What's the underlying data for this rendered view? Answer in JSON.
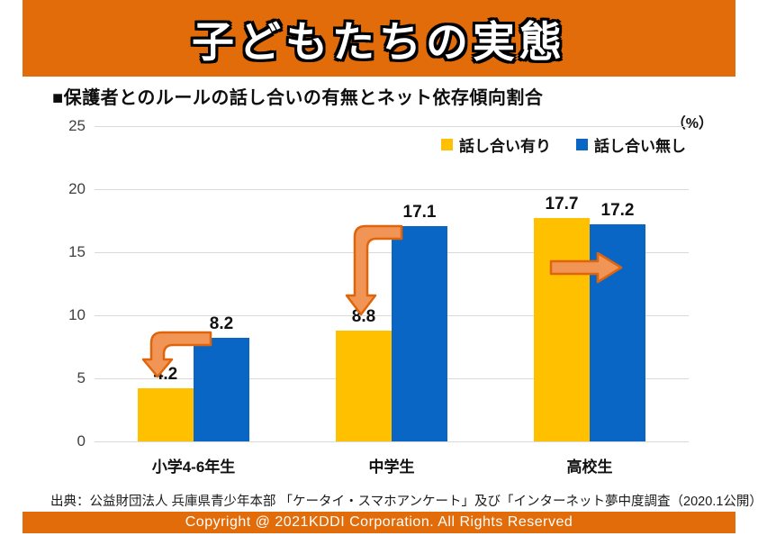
{
  "header": {
    "title": "子どもたちの実態",
    "background": "#E26C09"
  },
  "chart_title": "■保護者とのルールの話し合いの有無とネット依存傾向割合",
  "chart_data": {
    "type": "bar",
    "title": "保護者とのルールの話し合いの有無とネット依存傾向割合",
    "categories": [
      "小学4-6年生",
      "中学生",
      "高校生"
    ],
    "series": [
      {
        "name": "話し合い有り",
        "color": "#FFC000",
        "values": [
          4.2,
          8.8,
          17.7
        ]
      },
      {
        "name": "話し合い無し",
        "color": "#0A66C4",
        "values": [
          8.2,
          17.1,
          17.2
        ]
      }
    ],
    "xlabel": "",
    "ylabel": "（%）",
    "ylim": [
      0,
      25
    ],
    "yticks": [
      0,
      5,
      10,
      15,
      20,
      25
    ],
    "grid": true,
    "gridline_color": "#D9D9D9",
    "legend_position": "top-right",
    "value_labels": [
      "4.2",
      "8.2",
      "8.8",
      "17.1",
      "17.7",
      "17.2"
    ]
  },
  "arrows": {
    "fill": "#F19557",
    "stroke": "#E0650A",
    "items": [
      {
        "id": "arrow-elementary",
        "direction": "down-left"
      },
      {
        "id": "arrow-junior-high",
        "direction": "down-left"
      },
      {
        "id": "arrow-high-school",
        "direction": "right"
      }
    ]
  },
  "source": "出典：公益財団法人 兵庫県青少年本部 「ケータイ・スマホアンケート」及び「インターネット夢中度調査（2020.1公開）",
  "footer": {
    "copyright": "Copyright @ 2021KDDI Corporation. All Rights Reserved"
  }
}
